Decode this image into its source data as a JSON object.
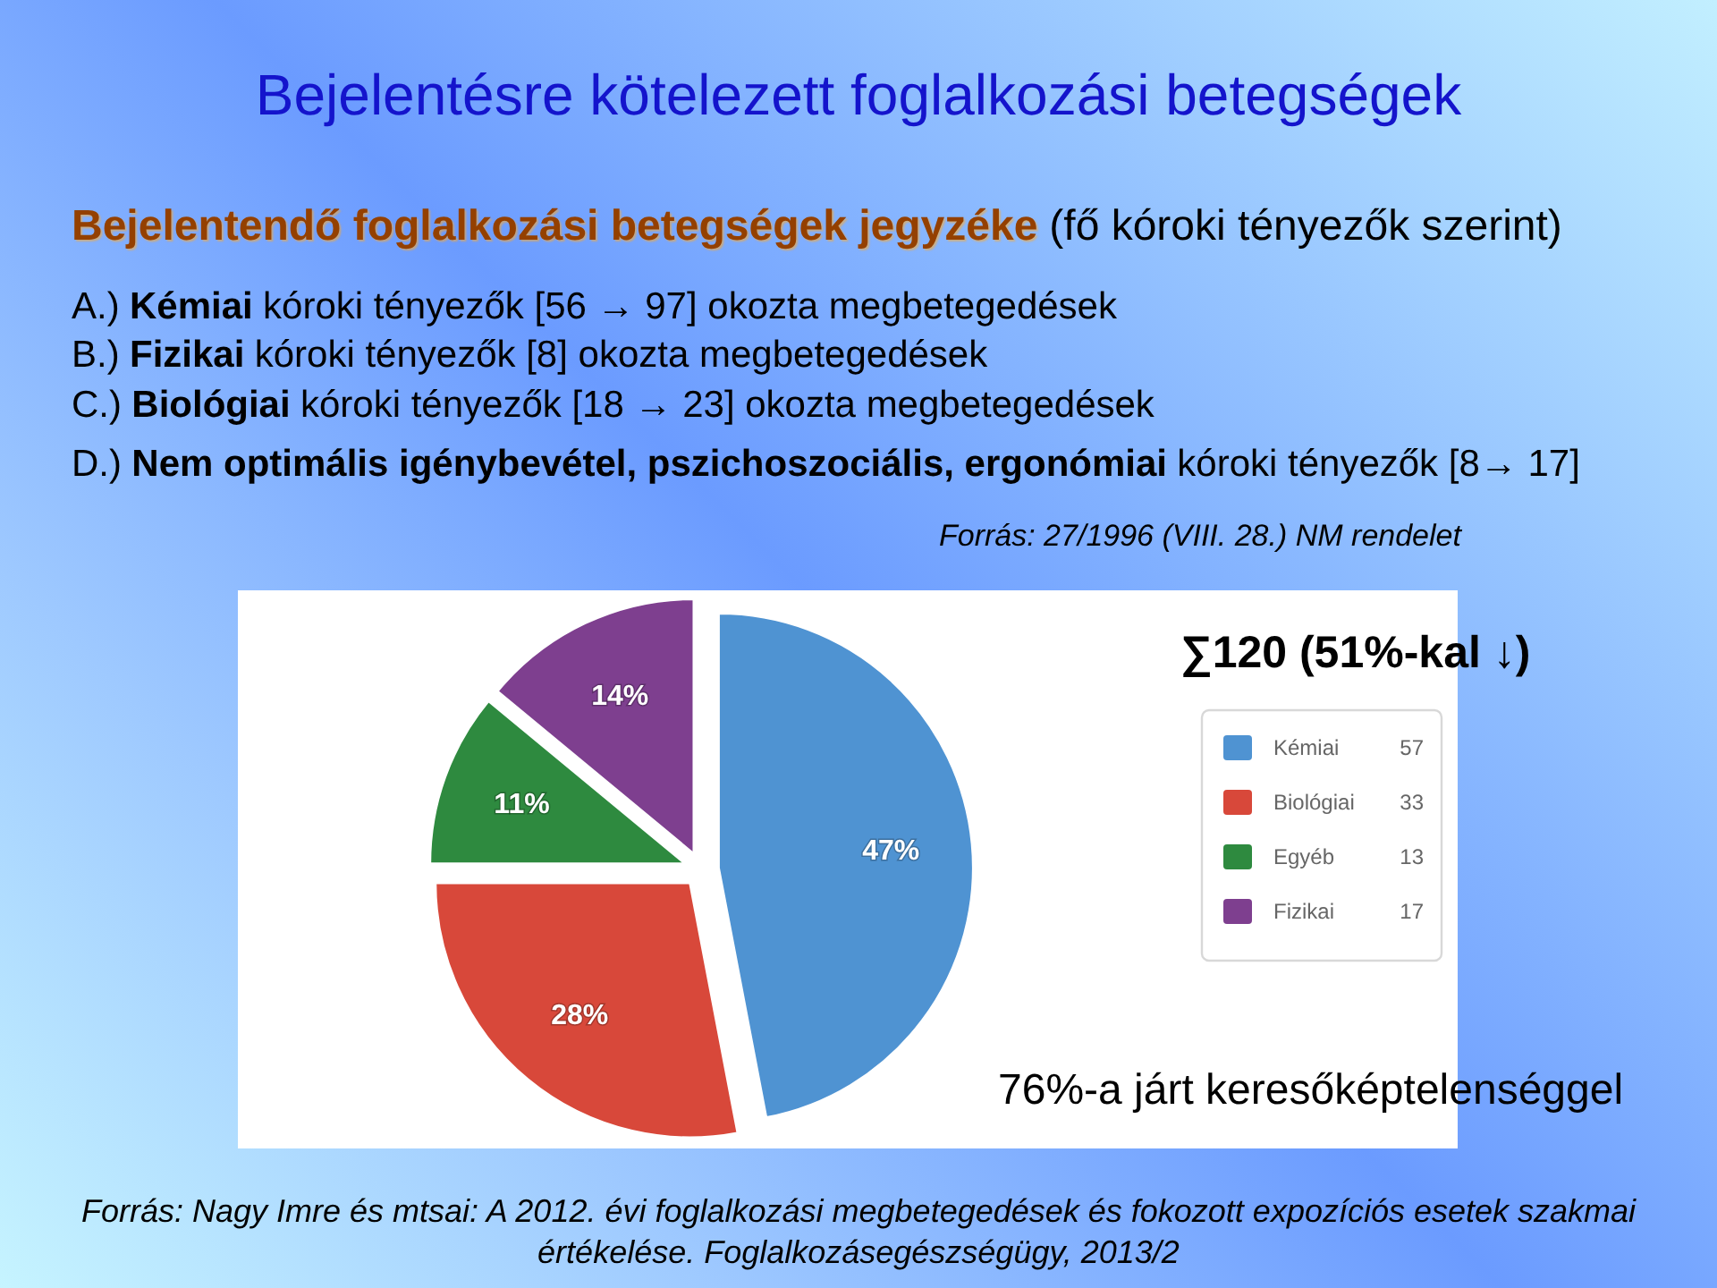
{
  "chart_data": {
    "type": "pie",
    "title": "Bejelentésre kötelezett foglalkozási betegségek",
    "subtitle": "Bejelentendő foglalkozási betegségek jegyzéke",
    "categories": [
      "Kémiai",
      "Biológiai",
      "Egyéb",
      "Fizikai"
    ],
    "values": [
      47,
      28,
      11,
      14
    ],
    "value_labels": [
      "47%",
      "28%",
      "11%",
      "14%"
    ],
    "colors": [
      "#4f93d2",
      "#d8483a",
      "#2e8a3f",
      "#7e3f8f"
    ],
    "legend": "right",
    "annotations": [
      "(fő kóroki tényezők szerint)",
      "A.)",
      "Kémiai",
      "kóroki tényezők [56 → 97] okozta megbetegedések",
      "B.)",
      "Fizikai",
      "kóroki tényezők [8] okozta megbetegedések",
      "C.)",
      "Biológiai",
      "kóroki tényezők [18 → 23] okozta megbetegedések",
      "D.)",
      "Nem optimális igénybevétel, pszichoszociális, ergonómiai",
      "kóroki tényezők [8→ 17]",
      "Forrás: 27/1996 (VIII. 28.) NM rendelet",
      "∑120 (51%-kal ↓)",
      "76%-a járt keresőképtelenséggel",
      "Forrás: Nagy Imre és mtsai: A 2012. évi foglalkozási megbetegedések és fokozott expozíciós esetek szakmai értékelése. Foglalkozásegészségügy, 2013/2",
      "57",
      "33",
      "13",
      "17"
    ]
  }
}
